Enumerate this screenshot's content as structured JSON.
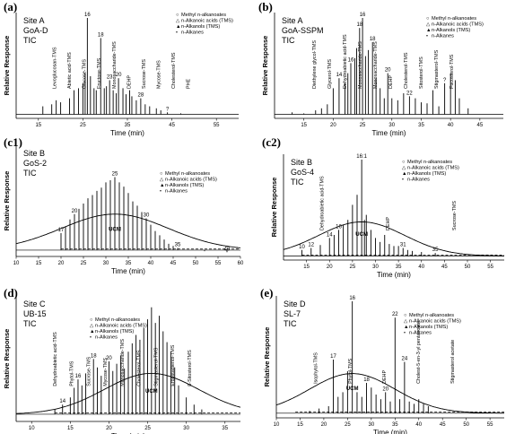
{
  "figure": {
    "y_label": "Relative Response",
    "x_label": "Time (min)",
    "ucm_label": "UCM"
  },
  "legend": {
    "items": [
      {
        "symbol": "○",
        "label": "Methyl n-alkanoates"
      },
      {
        "symbol": "△",
        "label": "n-Alkanoic acids (TMS)"
      },
      {
        "symbol": "▲",
        "label": "n-Alkanols (TMS)"
      },
      {
        "symbol": "•",
        "label": "n-Alkanes"
      }
    ]
  },
  "chart_data": [
    {
      "panel": "(a)",
      "type": "line",
      "site": [
        "Site A",
        "GoA-D",
        "TIC"
      ],
      "xticks": [
        15,
        25,
        35,
        45,
        55
      ],
      "xlim": [
        10,
        60
      ],
      "ucm": false,
      "peaks": [
        [
          16,
          12
        ],
        [
          18,
          14
        ],
        [
          19,
          18
        ],
        [
          20,
          16
        ],
        [
          22,
          20
        ],
        [
          23,
          28
        ],
        [
          24,
          30
        ],
        [
          25,
          35
        ],
        [
          25.5,
          45
        ],
        [
          26,
          100
        ],
        [
          26.7,
          42
        ],
        [
          27.5,
          30
        ],
        [
          28,
          28
        ],
        [
          29,
          80
        ],
        [
          29.8,
          30
        ],
        [
          30.3,
          32
        ],
        [
          31,
          38
        ],
        [
          31.8,
          28
        ],
        [
          32.5,
          25
        ],
        [
          33,
          40
        ],
        [
          34,
          30
        ],
        [
          34.7,
          24
        ],
        [
          35.5,
          28
        ],
        [
          36,
          22
        ],
        [
          37,
          18
        ],
        [
          38,
          20
        ],
        [
          39,
          14
        ],
        [
          40,
          12
        ],
        [
          41.5,
          10
        ],
        [
          42.5,
          8
        ],
        [
          44,
          6
        ],
        [
          47,
          5
        ]
      ],
      "baseline": 4,
      "peak_labels": [
        {
          "t": 26,
          "text": "16"
        },
        {
          "t": 29,
          "text": "18"
        },
        {
          "t": 31,
          "text": "23"
        },
        {
          "t": 33,
          "text": "20"
        },
        {
          "t": 38,
          "text": "28"
        },
        {
          "t": 44,
          "text": "?"
        }
      ],
      "annotations": [
        "Levoglucosan-TMS",
        "Abietic acid-TMS",
        "Glucose-TMS",
        "Fructose-TMS",
        "Monosaccharide-TMS",
        "DEHP",
        "Sucrose-TMS",
        "Mycose-TMS",
        "Cholesterol-TMS",
        "PHE"
      ]
    },
    {
      "panel": "(b)",
      "type": "line",
      "site": [
        "Site A",
        "GoA-SSPM",
        "TIC"
      ],
      "xticks": [
        15,
        20,
        25,
        30,
        35,
        40,
        45
      ],
      "xlim": [
        10,
        49
      ],
      "ucm": false,
      "peaks": [
        [
          13,
          6
        ],
        [
          15,
          5
        ],
        [
          17,
          8
        ],
        [
          18,
          10
        ],
        [
          19,
          14
        ],
        [
          20,
          30
        ],
        [
          21,
          40
        ],
        [
          22,
          35
        ],
        [
          22.5,
          45
        ],
        [
          23,
          55
        ],
        [
          23.7,
          60
        ],
        [
          24,
          70
        ],
        [
          24.5,
          90
        ],
        [
          25,
          100
        ],
        [
          25.5,
          62
        ],
        [
          26,
          68
        ],
        [
          26.7,
          76
        ],
        [
          27.3,
          40
        ],
        [
          28,
          30
        ],
        [
          28.7,
          20
        ],
        [
          29.3,
          45
        ],
        [
          30,
          20
        ],
        [
          31,
          18
        ],
        [
          32,
          25
        ],
        [
          33,
          22
        ],
        [
          34,
          20
        ],
        [
          35,
          16
        ],
        [
          36,
          15
        ],
        [
          37,
          28
        ],
        [
          38,
          12
        ],
        [
          39,
          35
        ],
        [
          40,
          45
        ],
        [
          40.8,
          38
        ],
        [
          41.5,
          20
        ],
        [
          43,
          10
        ]
      ],
      "baseline": 4,
      "peak_labels": [
        {
          "t": 21,
          "text": "14"
        },
        {
          "t": 23,
          "text": "16"
        },
        {
          "t": 24.5,
          "text": "18"
        },
        {
          "t": 25,
          "text": "16"
        },
        {
          "t": 26.7,
          "text": "18"
        },
        {
          "t": 29.3,
          "text": "20"
        },
        {
          "t": 33,
          "text": "22"
        },
        {
          "t": 39,
          "text": "?"
        }
      ],
      "annotations": [
        "Diethylene glycol-TMS",
        "Glycerol-TMS",
        "Dehydroabietic acid-TMS",
        "Monosaccharide-TMS",
        "Monosaccharide-TMS",
        "DEHP",
        "Cholesterol-TMS",
        "Sitosterol-TMS",
        "Stigmasterol-TMS",
        "Fucosterol-TMS"
      ]
    },
    {
      "panel": "(c1)",
      "type": "line",
      "site": [
        "Site B",
        "GoS-2",
        "TIC"
      ],
      "xticks": [
        10,
        15,
        20,
        25,
        30,
        35,
        40,
        45,
        50,
        55,
        60
      ],
      "xlim": [
        10,
        60
      ],
      "ucm": true,
      "peaks": [
        [
          20,
          22
        ],
        [
          21,
          28
        ],
        [
          22,
          35
        ],
        [
          23,
          40
        ],
        [
          24,
          45
        ],
        [
          25,
          50
        ],
        [
          26,
          55
        ],
        [
          27,
          58
        ],
        [
          28,
          62
        ],
        [
          29,
          65
        ],
        [
          30,
          70
        ],
        [
          31,
          72
        ],
        [
          32,
          75
        ],
        [
          33,
          70
        ],
        [
          34,
          66
        ],
        [
          35,
          60
        ],
        [
          36,
          52
        ],
        [
          37,
          48
        ],
        [
          38,
          42
        ],
        [
          39,
          36
        ],
        [
          40,
          30
        ],
        [
          41,
          24
        ],
        [
          42,
          20
        ],
        [
          43,
          16
        ],
        [
          44,
          12
        ],
        [
          45,
          10
        ],
        [
          46,
          8
        ],
        [
          48,
          6
        ],
        [
          52,
          5
        ],
        [
          57,
          4
        ]
      ],
      "baseline": 6,
      "peak_labels": [
        {
          "t": 20,
          "text": "17"
        },
        {
          "t": 23,
          "text": "20"
        },
        {
          "t": 32,
          "text": "25"
        },
        {
          "t": 39,
          "text": "30"
        },
        {
          "t": 46,
          "text": "35"
        },
        {
          "t": 57,
          "text": "40"
        }
      ],
      "annotations": []
    },
    {
      "panel": "(c2)",
      "type": "line",
      "site": [
        "Site B",
        "GoS-4",
        "TIC"
      ],
      "xticks": [
        15,
        20,
        25,
        30,
        35,
        40,
        45,
        50,
        55
      ],
      "xlim": [
        10,
        58
      ],
      "ucm": true,
      "peaks": [
        [
          14,
          10
        ],
        [
          16,
          12
        ],
        [
          18,
          15
        ],
        [
          20,
          22
        ],
        [
          21,
          25
        ],
        [
          22,
          30
        ],
        [
          23,
          35
        ],
        [
          24,
          40
        ],
        [
          25,
          55
        ],
        [
          26,
          65
        ],
        [
          27,
          100
        ],
        [
          27.6,
          40
        ],
        [
          28,
          45
        ],
        [
          29,
          30
        ],
        [
          30,
          22
        ],
        [
          31,
          18
        ],
        [
          32,
          25
        ],
        [
          33,
          16
        ],
        [
          34,
          14
        ],
        [
          35,
          14
        ],
        [
          36,
          12
        ],
        [
          37,
          10
        ],
        [
          38,
          9
        ],
        [
          40,
          8
        ],
        [
          43,
          7
        ]
      ],
      "baseline": 4,
      "peak_labels": [
        {
          "t": 14,
          "text": "10"
        },
        {
          "t": 16,
          "text": "12"
        },
        {
          "t": 20,
          "text": "14"
        },
        {
          "t": 22,
          "text": "16"
        },
        {
          "t": 27,
          "text": "16:1"
        },
        {
          "t": 36,
          "text": "31"
        },
        {
          "t": 43,
          "text": "35"
        }
      ],
      "annotations": [
        "Dehydroabietic acid-TMS",
        "DEHP",
        "Sucrose-TMS"
      ]
    },
    {
      "panel": "(d)",
      "type": "line",
      "site": [
        "Site C",
        "UB-15",
        "TIC"
      ],
      "xticks": [
        10,
        15,
        20,
        25,
        30,
        35
      ],
      "xlim": [
        8,
        37
      ],
      "ucm": true,
      "peaks": [
        [
          13,
          10
        ],
        [
          14,
          14
        ],
        [
          15,
          20
        ],
        [
          15.5,
          28
        ],
        [
          16,
          35
        ],
        [
          16.5,
          30
        ],
        [
          17,
          40
        ],
        [
          18,
          52
        ],
        [
          18.5,
          45
        ],
        [
          19,
          38
        ],
        [
          20,
          50
        ],
        [
          20.5,
          42
        ],
        [
          21,
          48
        ],
        [
          21.5,
          55
        ],
        [
          22,
          44
        ],
        [
          22.5,
          58
        ],
        [
          23,
          65
        ],
        [
          23.5,
          72
        ],
        [
          24,
          68
        ],
        [
          24.5,
          78
        ],
        [
          25,
          85
        ],
        [
          25.5,
          95
        ],
        [
          26,
          82
        ],
        [
          26.5,
          88
        ],
        [
          27,
          75
        ],
        [
          27.5,
          66
        ],
        [
          28,
          58
        ],
        [
          28.5,
          45
        ],
        [
          29,
          30
        ],
        [
          30,
          20
        ],
        [
          31,
          14
        ],
        [
          32,
          10
        ]
      ],
      "baseline": 6,
      "peak_labels": [
        {
          "t": 14,
          "text": "14"
        },
        {
          "t": 16,
          "text": "16"
        },
        {
          "t": 18,
          "text": "18"
        },
        {
          "t": 20,
          "text": "20"
        }
      ],
      "annotations": [
        "Dehydroabietic acid-TMS",
        "Phytol-TMS",
        "Sucrose-TMS",
        "Mycose-TMS",
        "Monosaccharide-TMS",
        "Cholesterol-TMS",
        "Stigmasterol-TMS",
        "Ergostadienol-TMS",
        "β-Sitosterol-TMS"
      ]
    },
    {
      "panel": "(e)",
      "type": "line",
      "site": [
        "Site D",
        "SL-7",
        "TIC"
      ],
      "xticks": [
        10,
        15,
        20,
        25,
        30,
        35,
        40,
        45,
        50,
        55
      ],
      "xlim": [
        10,
        58
      ],
      "ucm": true,
      "peaks": [
        [
          14,
          4
        ],
        [
          17,
          6
        ],
        [
          19,
          8
        ],
        [
          21,
          10
        ],
        [
          22,
          50
        ],
        [
          23,
          18
        ],
        [
          24,
          22
        ],
        [
          25,
          40
        ],
        [
          26,
          100
        ],
        [
          27,
          22
        ],
        [
          28,
          18
        ],
        [
          29,
          30
        ],
        [
          30,
          26
        ],
        [
          31,
          20
        ],
        [
          32,
          16
        ],
        [
          33,
          22
        ],
        [
          34,
          14
        ],
        [
          35,
          86
        ],
        [
          36,
          16
        ],
        [
          37,
          48
        ],
        [
          38,
          14
        ],
        [
          39,
          12
        ],
        [
          40,
          16
        ],
        [
          41,
          12
        ],
        [
          42,
          10
        ]
      ],
      "baseline": 4,
      "peak_labels": [
        {
          "t": 22,
          "text": "17"
        },
        {
          "t": 26,
          "text": "16"
        },
        {
          "t": 29,
          "text": "18"
        },
        {
          "t": 33,
          "text": "20"
        },
        {
          "t": 35,
          "text": "22"
        },
        {
          "t": 37,
          "text": "24"
        }
      ],
      "annotations": [
        "Isophytol-TMS",
        "Phytol-TMS",
        "DEHP",
        "Cholest-5-en-3-yl pentanoate",
        "Stigmasterol acetate"
      ]
    }
  ]
}
